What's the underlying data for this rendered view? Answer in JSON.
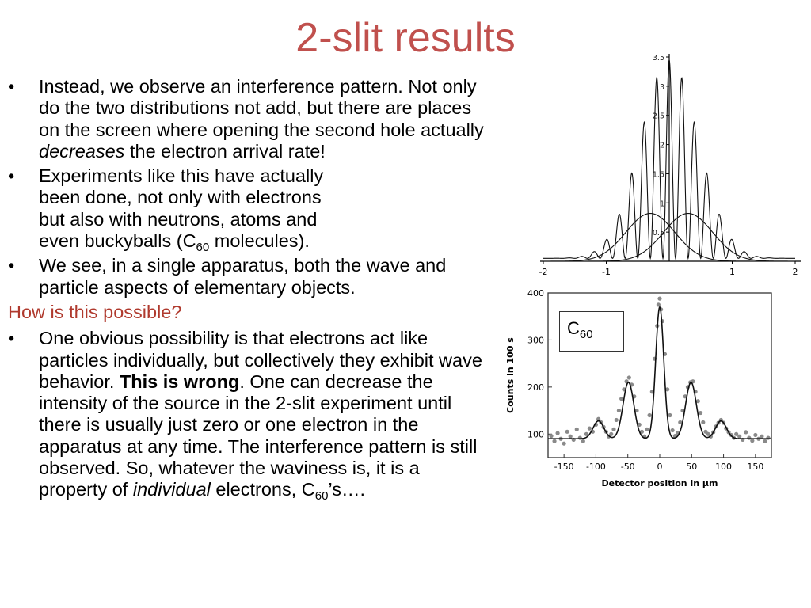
{
  "title": "2-slit results",
  "bullets": {
    "b1": {
      "part1": "Instead, we observe an interference pattern. Not only do the two distributions not add, but there are places on the screen where opening the second hole actually ",
      "emph": "decreases",
      "part2": " the electron arrival rate!"
    },
    "b2": {
      "line1": "Experiments like this have actually",
      "line2": "been done, not only with electrons",
      "line3": "but also with neutrons, atoms and",
      "line4a": "even buckyballs (C",
      "sub": "60",
      "line4b": " molecules)."
    },
    "b3": "We see, in a single apparatus, both the wave and particle aspects of elementary objects.",
    "question": "How is this possible?",
    "b4": {
      "part1": "One obvious possibility is that electrons act like particles individually, but collectively they exhibit wave behavior. ",
      "bold": "This is wrong",
      "part2": ".  One can decrease the intensity of the source in the 2-slit experiment until there is usually just zero or one electron in the apparatus at any time.  The interference pattern is still observed. So, whatever the waviness is, it is a property of ",
      "emph": "individual",
      "part3": " electrons, C",
      "sub": "60",
      "part4": "’s…."
    }
  },
  "bullet_glyph": "•",
  "c60_box": {
    "text": "C",
    "sub": "60"
  },
  "chart_data": [
    {
      "type": "line",
      "title": "",
      "xlim": [
        -2,
        2
      ],
      "ylim": [
        0,
        3.5
      ],
      "x_ticks": [
        "-2",
        "-1",
        "1",
        "2"
      ],
      "y_ticks": [
        "0.5",
        "1",
        "1.5",
        "2",
        "2.5",
        "3",
        "3.5"
      ],
      "series": [
        {
          "kind": "interference",
          "envelope_center": 0,
          "envelope_width": 0.65,
          "peak": 3.4,
          "fringe_spacing": 0.2
        },
        {
          "kind": "single-slit",
          "center": -0.3,
          "width": 0.55,
          "peak": 0.82
        },
        {
          "kind": "single-slit",
          "center": 0.3,
          "width": 0.55,
          "peak": 0.82
        }
      ]
    },
    {
      "type": "scatter",
      "xlabel": "Detector position in µm",
      "ylabel": "Counts in 100 s",
      "xlim": [
        -175,
        175
      ],
      "ylim": [
        50,
        400
      ],
      "x_ticks": [
        "-150",
        "-100",
        "-50",
        "0",
        "50",
        "100",
        "150"
      ],
      "y_ticks": [
        "100",
        "200",
        "300",
        "400"
      ],
      "fit_peaks": [
        {
          "x": 0,
          "y": 370
        },
        {
          "x": -49,
          "y": 210
        },
        {
          "x": 49,
          "y": 210
        },
        {
          "x": -96,
          "y": 128
        },
        {
          "x": 96,
          "y": 128
        }
      ],
      "baseline": 90,
      "points": [
        [
          -170,
          96
        ],
        [
          -165,
          85
        ],
        [
          -160,
          102
        ],
        [
          -155,
          90
        ],
        [
          -150,
          80
        ],
        [
          -145,
          105
        ],
        [
          -140,
          95
        ],
        [
          -135,
          88
        ],
        [
          -130,
          110
        ],
        [
          -125,
          92
        ],
        [
          -120,
          85
        ],
        [
          -115,
          100
        ],
        [
          -110,
          112
        ],
        [
          -105,
          105
        ],
        [
          -100,
          120
        ],
        [
          -96,
          132
        ],
        [
          -92,
          125
        ],
        [
          -88,
          115
        ],
        [
          -84,
          105
        ],
        [
          -80,
          95
        ],
        [
          -76,
          100
        ],
        [
          -72,
          110
        ],
        [
          -68,
          130
        ],
        [
          -64,
          150
        ],
        [
          -60,
          175
        ],
        [
          -56,
          195
        ],
        [
          -52,
          212
        ],
        [
          -48,
          220
        ],
        [
          -44,
          205
        ],
        [
          -40,
          180
        ],
        [
          -36,
          150
        ],
        [
          -32,
          120
        ],
        [
          -28,
          105
        ],
        [
          -24,
          95
        ],
        [
          -20,
          110
        ],
        [
          -16,
          140
        ],
        [
          -12,
          190
        ],
        [
          -8,
          260
        ],
        [
          -4,
          330
        ],
        [
          -2,
          375
        ],
        [
          0,
          388
        ],
        [
          2,
          365
        ],
        [
          4,
          340
        ],
        [
          8,
          270
        ],
        [
          12,
          195
        ],
        [
          16,
          140
        ],
        [
          20,
          108
        ],
        [
          24,
          96
        ],
        [
          28,
          102
        ],
        [
          32,
          125
        ],
        [
          36,
          150
        ],
        [
          40,
          180
        ],
        [
          44,
          200
        ],
        [
          48,
          210
        ],
        [
          52,
          212
        ],
        [
          56,
          190
        ],
        [
          60,
          170
        ],
        [
          64,
          145
        ],
        [
          68,
          125
        ],
        [
          72,
          105
        ],
        [
          76,
          100
        ],
        [
          80,
          95
        ],
        [
          84,
          104
        ],
        [
          88,
          116
        ],
        [
          92,
          124
        ],
        [
          96,
          130
        ],
        [
          100,
          124
        ],
        [
          104,
          112
        ],
        [
          108,
          104
        ],
        [
          112,
          98
        ],
        [
          116,
          92
        ],
        [
          120,
          100
        ],
        [
          125,
          95
        ],
        [
          130,
          88
        ],
        [
          135,
          104
        ],
        [
          140,
          92
        ],
        [
          145,
          86
        ],
        [
          150,
          98
        ],
        [
          155,
          90
        ],
        [
          160,
          95
        ],
        [
          165,
          85
        ],
        [
          170,
          92
        ]
      ]
    }
  ]
}
